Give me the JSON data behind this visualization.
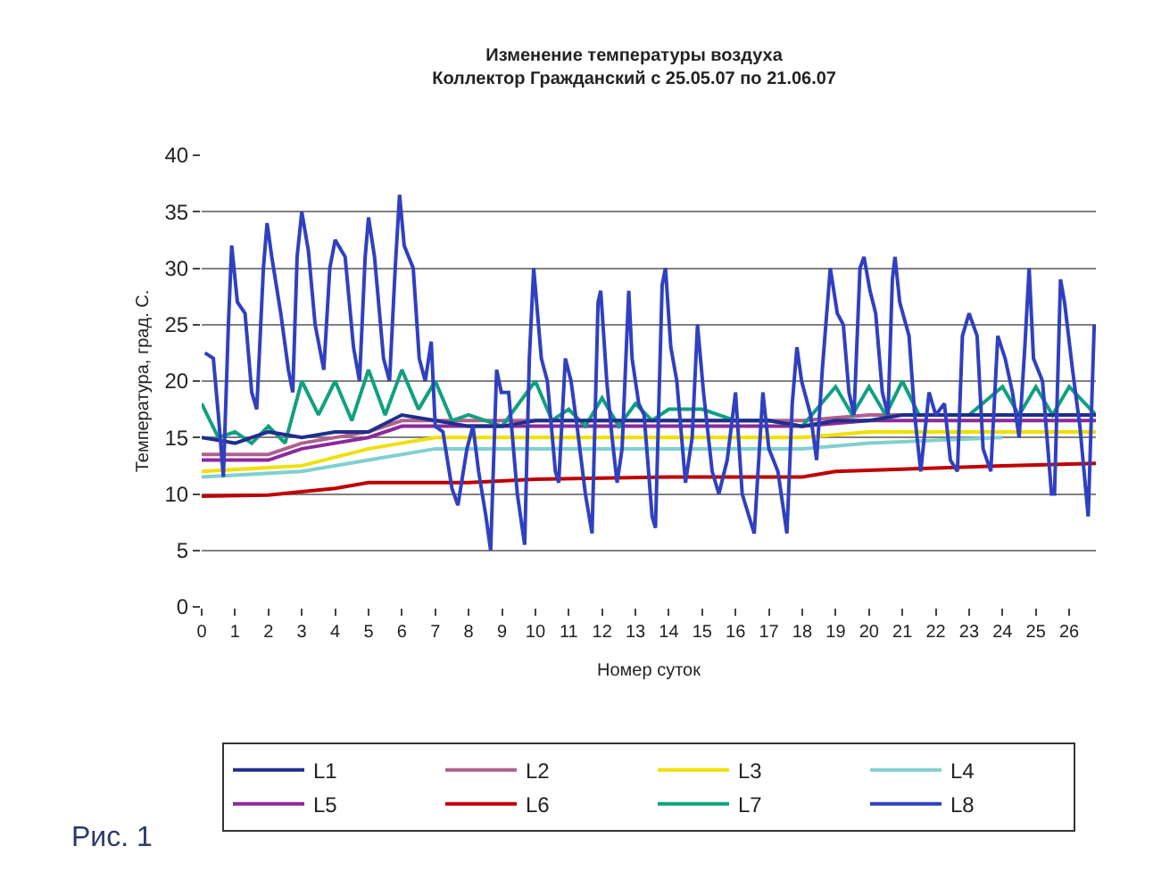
{
  "chart_data": {
    "type": "line",
    "title": "Изменение температуры воздуха\nКоллектор Гражданский с 25.05.07 по 21.06.07",
    "xlabel": "Номер суток",
    "ylabel": "Температура, град. С.",
    "annotations": [
      "Рис. 1"
    ],
    "xlim": [
      0,
      26.8
    ],
    "xticks": [
      0,
      1,
      2,
      3,
      4,
      5,
      6,
      7,
      8,
      9,
      10,
      11,
      12,
      13,
      14,
      15,
      16,
      17,
      18,
      19,
      20,
      21,
      22,
      23,
      24,
      25,
      26
    ],
    "ylim": [
      0,
      40
    ],
    "yticks": [
      0,
      5,
      10,
      15,
      20,
      25,
      30,
      35,
      40
    ],
    "grid": "y",
    "legend": "bottom",
    "marker": "none",
    "line_style": "solid",
    "series": [
      {
        "name": "L1",
        "color": "#1f2f8a",
        "x": [
          0,
          1,
          2,
          3,
          4,
          5,
          6,
          7,
          8,
          9,
          10,
          11,
          12,
          13,
          14,
          15,
          16,
          17,
          18,
          19,
          20,
          21,
          22,
          23,
          24,
          25,
          26,
          26.8
        ],
        "values": [
          15,
          14.5,
          15.5,
          15,
          15.5,
          15.5,
          17,
          16.5,
          16,
          16,
          16.5,
          16.5,
          16.5,
          16.5,
          16.5,
          16.5,
          16.5,
          16.5,
          16,
          16.5,
          16.5,
          17,
          17,
          17,
          17,
          17,
          17,
          17
        ]
      },
      {
        "name": "L2",
        "color": "#b06090",
        "x": [
          0,
          2,
          3,
          5,
          6,
          7,
          10,
          14,
          18,
          20,
          22,
          26.8
        ],
        "values": [
          13.5,
          13.5,
          14.5,
          15.5,
          16.5,
          16.5,
          16.5,
          16.5,
          16.5,
          17,
          17,
          17
        ]
      },
      {
        "name": "L3",
        "color": "#f0e000",
        "x": [
          0,
          3,
          5,
          7,
          10,
          18,
          20,
          26.8
        ],
        "values": [
          12,
          12.5,
          14,
          15,
          15,
          15,
          15.5,
          15.5
        ]
      },
      {
        "name": "L4",
        "color": "#80d0d0",
        "x": [
          0,
          3,
          5,
          7,
          10,
          18,
          20,
          24
        ],
        "values": [
          11.5,
          12,
          13,
          14,
          14,
          14,
          14.5,
          15
        ]
      },
      {
        "name": "L5",
        "color": "#8a2a9a",
        "x": [
          0,
          2,
          3,
          5,
          6,
          7,
          10,
          14,
          18,
          20,
          22,
          26.8
        ],
        "values": [
          13,
          13,
          14,
          15,
          16,
          16,
          16,
          16,
          16,
          16.5,
          16.5,
          16.5
        ]
      },
      {
        "name": "L6",
        "color": "#c00000",
        "x": [
          0,
          2,
          3,
          4,
          5,
          6,
          8,
          10,
          14,
          18,
          19,
          22,
          24,
          26.8
        ],
        "values": [
          9.8,
          9.9,
          10.2,
          10.5,
          11,
          11,
          11,
          11.3,
          11.5,
          11.5,
          12,
          12.3,
          12.5,
          12.7
        ]
      },
      {
        "name": "L7",
        "color": "#10a080",
        "x": [
          0,
          0.5,
          1,
          1.5,
          2,
          2.5,
          3,
          3.5,
          4,
          4.5,
          5,
          5.5,
          6,
          6.5,
          7,
          7.5,
          8,
          9,
          10,
          10.5,
          11,
          11.5,
          12,
          12.5,
          13,
          13.5,
          14,
          15,
          16,
          17,
          18,
          19,
          19.5,
          20,
          20.5,
          21,
          21.5,
          22,
          23,
          24,
          24.5,
          25,
          25.5,
          26,
          26.8
        ],
        "values": [
          18,
          15,
          15.5,
          14.5,
          16,
          14.5,
          20,
          17,
          20,
          16.5,
          21,
          17,
          21,
          17.5,
          20,
          16.5,
          17,
          16,
          20,
          16.5,
          17.5,
          16,
          18.5,
          16,
          18,
          16.5,
          17.5,
          17.5,
          16.5,
          16.5,
          16,
          19.5,
          17,
          19.5,
          17,
          20,
          17,
          17,
          17,
          19.5,
          17,
          19.5,
          17,
          19.5,
          17
        ]
      },
      {
        "name": "L8",
        "color": "#3040c0",
        "x": [
          0.1,
          0.35,
          0.5,
          0.65,
          0.8,
          0.9,
          1.07,
          1.3,
          1.5,
          1.65,
          1.85,
          1.96,
          2.1,
          2.37,
          2.6,
          2.73,
          2.86,
          3.0,
          3.2,
          3.4,
          3.66,
          3.84,
          4.0,
          4.3,
          4.55,
          4.73,
          4.9,
          5.0,
          5.18,
          5.45,
          5.63,
          5.8,
          5.93,
          6.07,
          6.34,
          6.52,
          6.7,
          6.88,
          7.0,
          7.23,
          7.5,
          7.68,
          7.95,
          8.13,
          8.3,
          8.52,
          8.66,
          8.84,
          8.98,
          9.2,
          9.46,
          9.68,
          9.82,
          9.95,
          10.18,
          10.36,
          10.6,
          10.7,
          10.9,
          11.07,
          11.25,
          11.5,
          11.7,
          11.88,
          11.96,
          12.14,
          12.3,
          12.45,
          12.6,
          12.8,
          12.9,
          13.1,
          13.26,
          13.5,
          13.6,
          13.8,
          13.9,
          14.06,
          14.24,
          14.5,
          14.7,
          14.86,
          15.04,
          15.3,
          15.5,
          15.75,
          16.0,
          16.2,
          16.56,
          16.82,
          17.0,
          17.27,
          17.54,
          17.7,
          17.84,
          17.98,
          18.25,
          18.43,
          18.6,
          18.84,
          19.05,
          19.23,
          19.4,
          19.55,
          19.73,
          19.85,
          20.03,
          20.2,
          20.4,
          20.57,
          20.7,
          20.78,
          20.92,
          21.2,
          21.37,
          21.55,
          21.8,
          22.0,
          22.26,
          22.44,
          22.65,
          22.8,
          23.0,
          23.24,
          23.42,
          23.65,
          23.86,
          24.08,
          24.3,
          24.5,
          24.67,
          24.8,
          24.93,
          25.2,
          25.47,
          25.56,
          25.74,
          25.86,
          26.1,
          26.32,
          26.57,
          26.75
        ],
        "values": [
          22.5,
          22,
          17,
          11.5,
          25,
          32,
          27,
          26,
          19,
          17.5,
          30,
          34,
          31,
          26,
          21,
          19,
          31,
          35,
          31.5,
          25,
          21,
          30,
          32.5,
          31,
          23,
          20,
          31,
          34.5,
          31,
          22,
          20,
          30,
          36.5,
          32,
          30,
          22,
          20,
          23.5,
          16,
          15.5,
          10.5,
          9,
          14,
          16,
          12,
          8,
          5,
          21,
          19,
          19,
          10,
          5.5,
          22,
          30,
          22,
          20,
          12,
          11,
          22,
          20,
          16,
          10,
          6.5,
          27,
          28,
          20,
          15,
          11,
          14,
          28,
          22,
          18,
          17,
          8,
          7,
          28.5,
          30,
          23,
          20,
          11,
          15,
          25,
          19,
          12,
          10,
          13,
          19,
          10,
          6.5,
          19,
          14,
          12,
          6.5,
          18,
          23,
          20,
          17,
          13,
          21,
          30,
          26,
          25,
          19,
          17,
          30,
          31,
          28,
          26,
          19,
          17,
          29,
          31,
          27,
          24,
          17,
          12,
          19,
          17,
          18,
          13,
          12,
          24,
          26,
          24,
          14,
          12,
          24,
          22,
          19,
          15,
          23,
          30,
          22,
          20,
          10,
          10,
          29,
          27,
          21,
          16,
          8,
          25
        ]
      }
    ]
  }
}
